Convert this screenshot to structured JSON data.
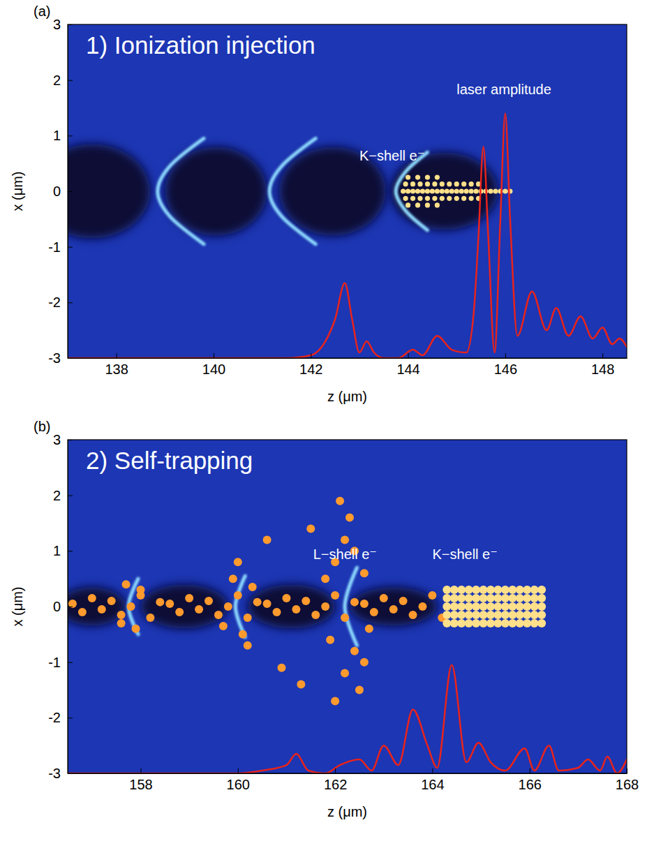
{
  "chart_data": [
    {
      "type": "scatter",
      "panel": "(a)",
      "title": "1) Ionization injection",
      "x_label": "z (μm)",
      "y_label": "x (μm)",
      "xlim": [
        137,
        148.5
      ],
      "ylim": [
        -3,
        3
      ],
      "xticks": [
        138,
        140,
        142,
        144,
        146,
        148
      ],
      "yticks": [
        -3,
        -2,
        -1,
        0,
        1,
        2,
        3
      ],
      "series": [
        {
          "type": "ellipse",
          "color": "#070b36",
          "x": [
            137.5,
            140.05,
            142.45,
            144.75
          ],
          "values": [
            0,
            0,
            0,
            0
          ],
          "rx": [
            1.2,
            1.05,
            1.1,
            1.1
          ],
          "ry": [
            0.85,
            0.8,
            0.8,
            0.7
          ]
        },
        {
          "type": "line",
          "color": "#8fdcff",
          "x": [
            139.8,
            139.1,
            138.85,
            139.1,
            139.8,
            139.8,
            142.1,
            141.4,
            141.15,
            141.4,
            142.1,
            142.1,
            144.4,
            143.95,
            143.75,
            143.95,
            144.4
          ],
          "values": [
            0.95,
            0.45,
            0,
            -0.45,
            -0.95,
            null,
            0.95,
            0.45,
            0,
            -0.45,
            -0.95,
            null,
            0.7,
            0.35,
            0,
            -0.35,
            -0.7
          ]
        },
        {
          "type": "scatter",
          "color": "#ffe08a",
          "x": [
            143.9,
            144.0,
            144.1,
            144.2,
            144.3,
            144.4,
            144.5,
            144.6,
            144.7,
            144.8,
            144.9,
            145.0,
            145.1,
            145.2,
            145.3,
            145.4,
            145.5,
            145.6,
            145.7,
            145.8,
            145.9,
            146.0,
            146.1,
            143.95,
            144.1,
            144.25,
            144.4,
            144.55,
            144.7,
            144.85,
            145.0,
            145.15,
            145.3,
            145.45,
            143.95,
            144.1,
            144.25,
            144.4,
            144.55,
            144.7,
            144.85,
            145.0,
            145.15,
            145.3,
            145.45,
            144.0,
            144.2,
            144.4,
            144.6,
            144.0,
            144.2,
            144.4,
            144.6
          ],
          "values": [
            0,
            0,
            0,
            0,
            0,
            0,
            0,
            0,
            0,
            0,
            0,
            0,
            0,
            0,
            0,
            0,
            0,
            0,
            0,
            0,
            0,
            0,
            0,
            0.13,
            0.13,
            0.13,
            0.13,
            0.13,
            0.13,
            0.13,
            0.13,
            0.13,
            0.13,
            0.13,
            -0.13,
            -0.13,
            -0.13,
            -0.13,
            -0.13,
            -0.13,
            -0.13,
            -0.13,
            -0.13,
            -0.13,
            -0.13,
            0.25,
            0.25,
            0.25,
            0.25,
            -0.25,
            -0.25,
            -0.25,
            -0.25
          ]
        },
        {
          "type": "line",
          "color": "#e8231c",
          "x": [
            137,
            141.5,
            142.0,
            142.3,
            142.5,
            142.7,
            142.85,
            143.0,
            143.15,
            143.3,
            143.5,
            143.8,
            144.1,
            144.3,
            144.6,
            144.9,
            145.2,
            145.35,
            145.45,
            145.55,
            145.65,
            145.78,
            145.9,
            146.0,
            146.1,
            146.25,
            146.55,
            146.85,
            147.05,
            147.3,
            147.55,
            147.8,
            148.0,
            148.2,
            148.35,
            148.5
          ],
          "values": [
            -3,
            -3,
            -2.95,
            -2.7,
            -2.3,
            -1.65,
            -2.3,
            -2.9,
            -2.7,
            -2.9,
            -3,
            -3,
            -2.85,
            -2.95,
            -2.6,
            -2.85,
            -2.9,
            -2.2,
            -0.8,
            0.8,
            -0.8,
            -2.9,
            -0.5,
            1.4,
            -0.5,
            -2.6,
            -1.8,
            -2.5,
            -2.1,
            -2.6,
            -2.25,
            -2.65,
            -2.45,
            -2.75,
            -2.65,
            -2.8
          ]
        }
      ],
      "annotations": [
        {
          "text": "K−shell e⁻",
          "x": 143.0,
          "y": 0.55
        },
        {
          "text": "laser amplitude",
          "x": 145.0,
          "y": 1.75
        }
      ]
    },
    {
      "type": "scatter",
      "panel": "(b)",
      "title": "2) Self-trapping",
      "x_label": "z (μm)",
      "y_label": "x (μm)",
      "xlim": [
        156.5,
        168
      ],
      "ylim": [
        -3,
        3
      ],
      "xticks": [
        158,
        160,
        162,
        164,
        166,
        168
      ],
      "yticks": [
        -3,
        -2,
        -1,
        0,
        1,
        2,
        3
      ],
      "series": [
        {
          "type": "ellipse",
          "color": "#070b36",
          "x": [
            157.0,
            158.9,
            161.1,
            163.2
          ],
          "values": [
            0,
            0,
            0,
            0
          ],
          "rx": [
            0.7,
            0.9,
            0.9,
            0.9
          ],
          "ry": [
            0.35,
            0.4,
            0.4,
            0.35
          ]
        },
        {
          "type": "line",
          "color": "#8fdcff",
          "x": [
            157.95,
            157.75,
            157.95,
            157.95,
            160.15,
            159.95,
            160.15,
            160.15,
            162.45,
            162.2,
            162.45
          ],
          "values": [
            0.5,
            0,
            -0.5,
            null,
            0.55,
            0,
            -0.55,
            null,
            0.7,
            0,
            -0.7
          ]
        },
        {
          "type": "scatter",
          "color": "#ff9a2e",
          "x": [
            156.6,
            156.8,
            157.0,
            157.2,
            157.4,
            157.6,
            157.8,
            158.0,
            158.2,
            158.4,
            158.6,
            158.8,
            159.0,
            159.2,
            159.4,
            159.6,
            159.8,
            160.0,
            160.2,
            160.4,
            160.6,
            160.8,
            161.0,
            161.2,
            161.4,
            161.6,
            161.8,
            162.0,
            162.2,
            162.4,
            162.6,
            162.8,
            163.0,
            163.2,
            163.4,
            163.6,
            163.8,
            164.0,
            164.2,
            157.7,
            157.9,
            158.0,
            157.6,
            159.9,
            160.1,
            160.3,
            159.7,
            160.0,
            160.2,
            162.0,
            162.2,
            162.3,
            162.1,
            162.4,
            162.2,
            162.5,
            162.0,
            161.8,
            162.6,
            161.9,
            162.7,
            162.4,
            162.6,
            160.6,
            161.5,
            160.9,
            161.3
          ],
          "values": [
            0.05,
            -0.1,
            0.15,
            -0.05,
            0.1,
            -0.15,
            0,
            0.2,
            -0.2,
            0.08,
            0.05,
            -0.1,
            0.15,
            -0.05,
            0.1,
            -0.15,
            0,
            0.2,
            -0.2,
            0.08,
            0.05,
            -0.1,
            0.15,
            -0.05,
            0.1,
            -0.15,
            0,
            0.2,
            -0.2,
            0.08,
            0.05,
            -0.1,
            0.15,
            -0.05,
            0.1,
            -0.15,
            0,
            0.2,
            -0.2,
            0.4,
            -0.4,
            0.3,
            -0.3,
            0.5,
            -0.5,
            0.35,
            -0.35,
            0.8,
            -0.7,
            0.8,
            1.2,
            1.6,
            1.9,
            -0.8,
            -1.2,
            -1.5,
            -1.7,
            0.5,
            0.6,
            -0.6,
            -0.4,
            1.0,
            -1.0,
            1.2,
            1.4,
            -1.1,
            -1.4
          ]
        },
        {
          "type": "scatter",
          "color": "#ffe08a",
          "x": [
            164.3,
            164.45,
            164.6,
            164.75,
            164.9,
            165.05,
            165.2,
            165.35,
            165.5,
            165.65,
            165.8,
            165.95,
            166.1,
            166.25,
            164.3,
            164.45,
            164.6,
            164.75,
            164.9,
            165.05,
            165.2,
            165.35,
            165.5,
            165.65,
            165.8,
            165.95,
            166.1,
            166.25,
            164.3,
            164.45,
            164.6,
            164.75,
            164.9,
            165.05,
            165.2,
            165.35,
            165.5,
            165.65,
            165.8,
            165.95,
            166.1,
            166.25,
            164.3,
            164.45,
            164.6,
            164.75,
            164.9,
            165.05,
            165.2,
            165.35,
            165.5,
            165.65,
            165.8,
            165.95,
            166.1,
            166.25,
            164.3,
            164.45,
            164.6,
            164.75,
            164.9,
            165.05,
            165.2,
            165.35,
            165.5,
            165.65,
            165.8,
            165.95,
            166.1,
            166.25
          ],
          "values": [
            0.3,
            0.3,
            0.3,
            0.3,
            0.3,
            0.3,
            0.3,
            0.3,
            0.3,
            0.3,
            0.3,
            0.3,
            0.3,
            0.3,
            0.15,
            0.15,
            0.15,
            0.15,
            0.15,
            0.15,
            0.15,
            0.15,
            0.15,
            0.15,
            0.15,
            0.15,
            0.15,
            0.15,
            0,
            0,
            0,
            0,
            0,
            0,
            0,
            0,
            0,
            0,
            0,
            0,
            0,
            0,
            -0.15,
            -0.15,
            -0.15,
            -0.15,
            -0.15,
            -0.15,
            -0.15,
            -0.15,
            -0.15,
            -0.15,
            -0.15,
            -0.15,
            -0.15,
            -0.15,
            -0.3,
            -0.3,
            -0.3,
            -0.3,
            -0.3,
            -0.3,
            -0.3,
            -0.3,
            -0.3,
            -0.3,
            -0.3,
            -0.3,
            -0.3,
            -0.3
          ]
        },
        {
          "type": "line",
          "color": "#e8231c",
          "x": [
            156.5,
            160.0,
            160.5,
            161.0,
            161.2,
            161.45,
            161.8,
            162.1,
            162.5,
            162.75,
            163.0,
            163.3,
            163.6,
            163.9,
            164.1,
            164.4,
            164.7,
            164.95,
            165.2,
            165.5,
            165.9,
            166.1,
            166.4,
            166.6,
            167.0,
            167.2,
            167.45,
            167.6,
            167.8,
            168.0
          ],
          "values": [
            -3,
            -3,
            -2.95,
            -2.85,
            -2.65,
            -2.95,
            -3,
            -2.85,
            -2.75,
            -2.95,
            -2.5,
            -2.85,
            -1.85,
            -2.5,
            -2.9,
            -1.05,
            -2.8,
            -2.45,
            -2.8,
            -2.95,
            -2.55,
            -2.95,
            -2.5,
            -2.95,
            -2.9,
            -2.75,
            -2.95,
            -2.7,
            -3,
            -2.75
          ]
        }
      ],
      "annotations": [
        {
          "text": "L−shell e⁻",
          "x": 161.55,
          "y": 0.85
        },
        {
          "text": "K−shell e⁻",
          "x": 164.0,
          "y": 0.85
        }
      ]
    }
  ]
}
